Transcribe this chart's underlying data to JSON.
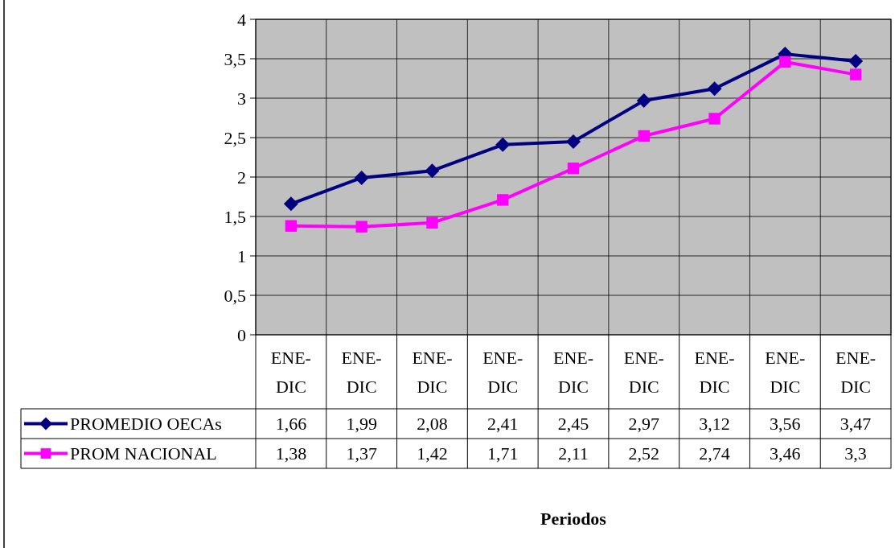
{
  "chart_data": {
    "type": "line",
    "categories": [
      "ENE-DIC",
      "ENE-DIC",
      "ENE-DIC",
      "ENE-DIC",
      "ENE-DIC",
      "ENE-DIC",
      "ENE-DIC",
      "ENE-DIC",
      "ENE-DIC"
    ],
    "series": [
      {
        "name": "PROMEDIO OECAs",
        "color": "#000080",
        "marker": "diamond",
        "values": [
          1.66,
          1.99,
          2.08,
          2.41,
          2.45,
          2.97,
          3.12,
          3.56,
          3.47
        ],
        "value_labels": [
          "1,66",
          "1,99",
          "2,08",
          "2,41",
          "2,45",
          "2,97",
          "3,12",
          "3,56",
          "3,47"
        ]
      },
      {
        "name": "PROM  NACIONAL",
        "color": "#ff00ff",
        "marker": "square",
        "values": [
          1.38,
          1.37,
          1.42,
          1.71,
          2.11,
          2.52,
          2.74,
          3.46,
          3.3
        ],
        "value_labels": [
          "1,38",
          "1,37",
          "1,42",
          "1,71",
          "2,11",
          "2,52",
          "2,74",
          "3,46",
          "3,3"
        ]
      }
    ],
    "ylim": [
      0,
      4
    ],
    "yticks": [
      {
        "value": 0,
        "label": "0"
      },
      {
        "value": 0.5,
        "label": "0,5"
      },
      {
        "value": 1,
        "label": "1"
      },
      {
        "value": 1.5,
        "label": "1,5"
      },
      {
        "value": 2,
        "label": "2"
      },
      {
        "value": 2.5,
        "label": "2,5"
      },
      {
        "value": 3,
        "label": "3"
      },
      {
        "value": 3.5,
        "label": "3,5"
      },
      {
        "value": 4,
        "label": "4"
      }
    ],
    "annotations": [
      "Periodos"
    ],
    "grid": true,
    "legend": "bottom left",
    "line_style": "solid"
  }
}
